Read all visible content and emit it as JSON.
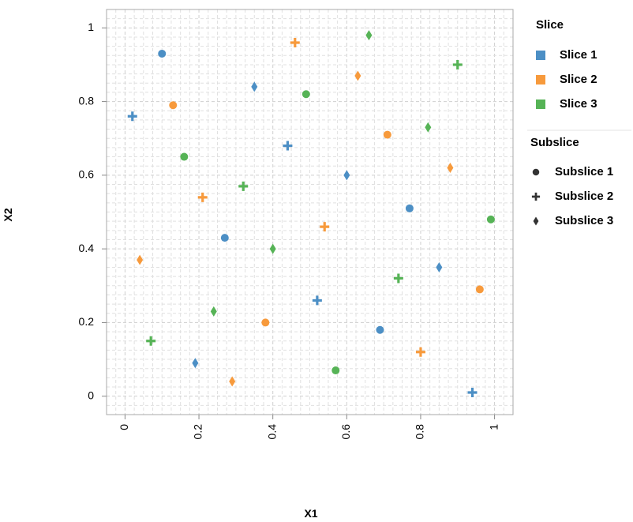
{
  "chart_data": {
    "type": "scatter",
    "xlabel": "X1",
    "ylabel": "X2",
    "xlim": [
      -0.05,
      1.05
    ],
    "ylim": [
      -0.05,
      1.05
    ],
    "x_ticks": [
      {
        "value": 0,
        "label": "0"
      },
      {
        "value": 0.2,
        "label": "0.2"
      },
      {
        "value": 0.4,
        "label": "0.4"
      },
      {
        "value": 0.6,
        "label": "0.6"
      },
      {
        "value": 0.8,
        "label": "0.8"
      },
      {
        "value": 1,
        "label": "1"
      }
    ],
    "y_ticks": [
      {
        "value": 0,
        "label": "0"
      },
      {
        "value": 0.2,
        "label": "0.2"
      },
      {
        "value": 0.4,
        "label": "0.4"
      },
      {
        "value": 0.6,
        "label": "0.6"
      },
      {
        "value": 0.8,
        "label": "0.8"
      },
      {
        "value": 1,
        "label": "1"
      }
    ],
    "grid": true,
    "minor_grid": true,
    "colors": {
      "Slice 1": "#4c8fc5",
      "Slice 2": "#f79a3c",
      "Slice 3": "#56b356"
    },
    "shapes": {
      "Subslice 1": "circle",
      "Subslice 2": "cross",
      "Subslice 3": "diamond"
    },
    "legend": {
      "placement": "right",
      "color_title": "Slice",
      "color_items": [
        "Slice 1",
        "Slice 2",
        "Slice 3"
      ],
      "shape_title": "Subslice",
      "shape_items": [
        "Subslice 1",
        "Subslice 2",
        "Subslice 3"
      ]
    },
    "points": [
      {
        "x": 0.1,
        "y": 0.93,
        "slice": "Slice 1",
        "subslice": "Subslice 1"
      },
      {
        "x": 0.27,
        "y": 0.43,
        "slice": "Slice 1",
        "subslice": "Subslice 1"
      },
      {
        "x": 0.69,
        "y": 0.18,
        "slice": "Slice 1",
        "subslice": "Subslice 1"
      },
      {
        "x": 0.77,
        "y": 0.51,
        "slice": "Slice 1",
        "subslice": "Subslice 1"
      },
      {
        "x": 0.02,
        "y": 0.76,
        "slice": "Slice 1",
        "subslice": "Subslice 2"
      },
      {
        "x": 0.44,
        "y": 0.68,
        "slice": "Slice 1",
        "subslice": "Subslice 2"
      },
      {
        "x": 0.52,
        "y": 0.26,
        "slice": "Slice 1",
        "subslice": "Subslice 2"
      },
      {
        "x": 0.94,
        "y": 0.01,
        "slice": "Slice 1",
        "subslice": "Subslice 2"
      },
      {
        "x": 0.35,
        "y": 0.84,
        "slice": "Slice 1",
        "subslice": "Subslice 3"
      },
      {
        "x": 0.6,
        "y": 0.6,
        "slice": "Slice 1",
        "subslice": "Subslice 3"
      },
      {
        "x": 0.19,
        "y": 0.09,
        "slice": "Slice 1",
        "subslice": "Subslice 3"
      },
      {
        "x": 0.85,
        "y": 0.35,
        "slice": "Slice 1",
        "subslice": "Subslice 3"
      },
      {
        "x": 0.13,
        "y": 0.79,
        "slice": "Slice 2",
        "subslice": "Subslice 1"
      },
      {
        "x": 0.38,
        "y": 0.2,
        "slice": "Slice 2",
        "subslice": "Subslice 1"
      },
      {
        "x": 0.71,
        "y": 0.71,
        "slice": "Slice 2",
        "subslice": "Subslice 1"
      },
      {
        "x": 0.96,
        "y": 0.29,
        "slice": "Slice 2",
        "subslice": "Subslice 1"
      },
      {
        "x": 0.46,
        "y": 0.96,
        "slice": "Slice 2",
        "subslice": "Subslice 2"
      },
      {
        "x": 0.21,
        "y": 0.54,
        "slice": "Slice 2",
        "subslice": "Subslice 2"
      },
      {
        "x": 0.54,
        "y": 0.46,
        "slice": "Slice 2",
        "subslice": "Subslice 2"
      },
      {
        "x": 0.8,
        "y": 0.12,
        "slice": "Slice 2",
        "subslice": "Subslice 2"
      },
      {
        "x": 0.63,
        "y": 0.87,
        "slice": "Slice 2",
        "subslice": "Subslice 3"
      },
      {
        "x": 0.04,
        "y": 0.37,
        "slice": "Slice 2",
        "subslice": "Subslice 3"
      },
      {
        "x": 0.88,
        "y": 0.62,
        "slice": "Slice 2",
        "subslice": "Subslice 3"
      },
      {
        "x": 0.29,
        "y": 0.04,
        "slice": "Slice 2",
        "subslice": "Subslice 3"
      },
      {
        "x": 0.49,
        "y": 0.82,
        "slice": "Slice 3",
        "subslice": "Subslice 1"
      },
      {
        "x": 0.16,
        "y": 0.65,
        "slice": "Slice 3",
        "subslice": "Subslice 1"
      },
      {
        "x": 0.99,
        "y": 0.48,
        "slice": "Slice 3",
        "subslice": "Subslice 1"
      },
      {
        "x": 0.57,
        "y": 0.07,
        "slice": "Slice 3",
        "subslice": "Subslice 1"
      },
      {
        "x": 0.9,
        "y": 0.9,
        "slice": "Slice 3",
        "subslice": "Subslice 2"
      },
      {
        "x": 0.32,
        "y": 0.57,
        "slice": "Slice 3",
        "subslice": "Subslice 2"
      },
      {
        "x": 0.74,
        "y": 0.32,
        "slice": "Slice 3",
        "subslice": "Subslice 2"
      },
      {
        "x": 0.07,
        "y": 0.15,
        "slice": "Slice 3",
        "subslice": "Subslice 2"
      },
      {
        "x": 0.66,
        "y": 0.98,
        "slice": "Slice 3",
        "subslice": "Subslice 3"
      },
      {
        "x": 0.82,
        "y": 0.73,
        "slice": "Slice 3",
        "subslice": "Subslice 3"
      },
      {
        "x": 0.4,
        "y": 0.4,
        "slice": "Slice 3",
        "subslice": "Subslice 3"
      },
      {
        "x": 0.24,
        "y": 0.23,
        "slice": "Slice 3",
        "subslice": "Subslice 3"
      }
    ]
  }
}
